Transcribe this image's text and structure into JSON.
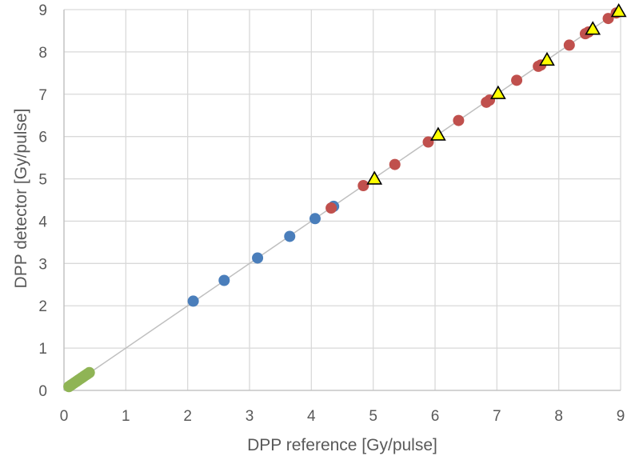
{
  "chart_data": {
    "type": "scatter",
    "title": "",
    "xlabel": "DPP reference  [Gy/pulse]",
    "ylabel": "DPP detector [Gy/pulse]",
    "xlim": [
      0,
      9
    ],
    "ylim": [
      0,
      9
    ],
    "xticks": [
      "0",
      "1",
      "2",
      "3",
      "4",
      "5",
      "6",
      "7",
      "8",
      "9"
    ],
    "yticks": [
      "0",
      "1",
      "2",
      "3",
      "4",
      "5",
      "6",
      "7",
      "8",
      "9"
    ],
    "grid": true,
    "legend": "none",
    "reference_line": {
      "x": [
        0,
        9
      ],
      "y": [
        0,
        9
      ],
      "color": "#bfbfbf"
    },
    "series": [
      {
        "marker": "circle",
        "color": "#8fb455",
        "points": [
          [
            0.08,
            0.09
          ],
          [
            0.11,
            0.12
          ],
          [
            0.14,
            0.15
          ],
          [
            0.17,
            0.18
          ],
          [
            0.2,
            0.21
          ],
          [
            0.23,
            0.24
          ],
          [
            0.26,
            0.27
          ],
          [
            0.29,
            0.3
          ],
          [
            0.32,
            0.33
          ],
          [
            0.35,
            0.36
          ],
          [
            0.38,
            0.39
          ],
          [
            0.41,
            0.42
          ]
        ]
      },
      {
        "marker": "circle",
        "color": "#4a7ebb",
        "points": [
          [
            2.09,
            2.11
          ],
          [
            2.59,
            2.6
          ],
          [
            3.13,
            3.13
          ],
          [
            3.65,
            3.64
          ],
          [
            4.06,
            4.06
          ],
          [
            4.36,
            4.35
          ]
        ]
      },
      {
        "marker": "circle",
        "color": "#c0504d",
        "points": [
          [
            4.32,
            4.31
          ],
          [
            4.84,
            4.84
          ],
          [
            5.35,
            5.34
          ],
          [
            5.89,
            5.87
          ],
          [
            6.38,
            6.38
          ],
          [
            6.83,
            6.81
          ],
          [
            6.88,
            6.86
          ],
          [
            7.32,
            7.33
          ],
          [
            7.67,
            7.66
          ],
          [
            7.71,
            7.69
          ],
          [
            8.17,
            8.16
          ],
          [
            8.43,
            8.43
          ],
          [
            8.48,
            8.47
          ],
          [
            8.8,
            8.79
          ],
          [
            8.93,
            8.92
          ]
        ]
      },
      {
        "marker": "triangle",
        "color": "#ffff00",
        "points": [
          [
            5.02,
            5.0
          ],
          [
            6.05,
            6.04
          ],
          [
            7.02,
            7.02
          ],
          [
            7.81,
            7.81
          ],
          [
            8.55,
            8.54
          ],
          [
            8.97,
            8.96
          ]
        ]
      }
    ]
  }
}
